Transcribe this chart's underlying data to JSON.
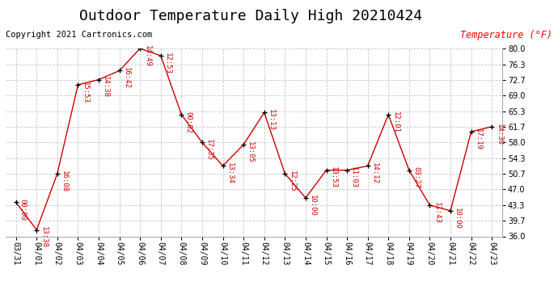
{
  "title": "Outdoor Temperature Daily High 20210424",
  "copyright": "Copyright 2021 Cartronics.com",
  "ylabel": "Temperature (°F)",
  "ylabel_color": "red",
  "background_color": "#ffffff",
  "line_color": "#cc0000",
  "marker_color": "#000000",
  "grid_color": "#c8c8c8",
  "x_labels": [
    "03/31",
    "04/01",
    "04/02",
    "04/03",
    "04/04",
    "04/05",
    "04/06",
    "04/07",
    "04/08",
    "04/09",
    "04/10",
    "04/11",
    "04/12",
    "04/13",
    "04/14",
    "04/15",
    "04/16",
    "04/17",
    "04/18",
    "04/19",
    "04/20",
    "04/21",
    "04/22",
    "04/23"
  ],
  "y_values": [
    44.0,
    37.5,
    50.7,
    71.5,
    72.7,
    74.8,
    80.0,
    78.3,
    64.5,
    58.0,
    52.5,
    57.5,
    65.0,
    50.7,
    45.0,
    51.5,
    51.5,
    52.5,
    64.5,
    51.5,
    43.3,
    42.0,
    60.5,
    61.7
  ],
  "annotations": [
    "00:00",
    "13:38",
    "16:08",
    "15:53",
    "14:38",
    "16:42",
    "14:49",
    "12:53",
    "00:02",
    "17:35",
    "13:34",
    "13:05",
    "13:13",
    "12:25",
    "10:00",
    "13:53",
    "11:03",
    "14:12",
    "12:01",
    "03:27",
    "11:43",
    "10:00",
    "17:19",
    "14:30"
  ],
  "ylim": [
    36.0,
    80.0
  ],
  "yticks": [
    36.0,
    39.7,
    43.3,
    47.0,
    50.7,
    54.3,
    58.0,
    61.7,
    65.3,
    69.0,
    72.7,
    76.3,
    80.0
  ],
  "title_fontsize": 13,
  "annotation_fontsize": 6.5,
  "copyright_fontsize": 7.5,
  "ylabel_fontsize": 8.5,
  "tick_fontsize": 7
}
